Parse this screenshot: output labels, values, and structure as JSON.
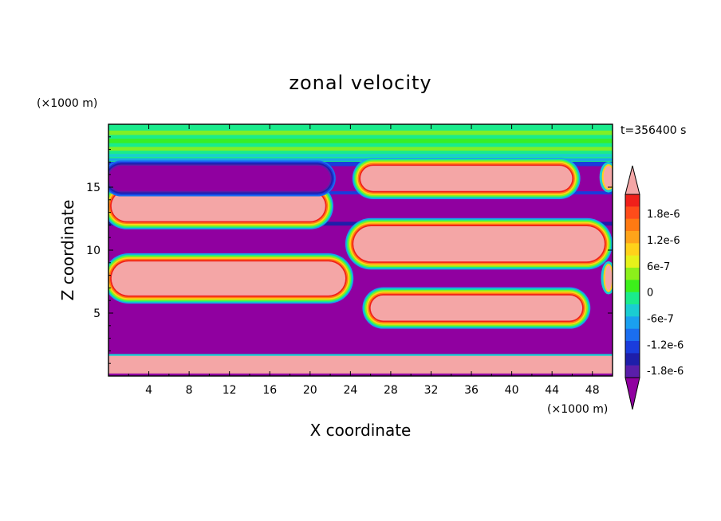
{
  "chart_data": {
    "type": "heatmap",
    "title": "zonal velocity",
    "time_label": "t=356400 s",
    "xlabel": "X coordinate",
    "ylabel": "Z coordinate",
    "x_unit": "(×1000 m)",
    "y_unit": "(×1000 m)",
    "xlim": [
      0,
      50
    ],
    "ylim": [
      0,
      20
    ],
    "x_ticks": [
      "4",
      "8",
      "12",
      "16",
      "20",
      "24",
      "28",
      "32",
      "36",
      "40",
      "44",
      "48"
    ],
    "x_tick_values": [
      4,
      8,
      12,
      16,
      20,
      24,
      28,
      32,
      36,
      40,
      44,
      48
    ],
    "y_ticks": [
      "5",
      "10",
      "15"
    ],
    "y_tick_values": [
      5,
      10,
      15
    ],
    "colorbar": {
      "labels": [
        "1.8e-6",
        "1.2e-6",
        "6e-7",
        "0",
        "-6e-7",
        "-1.2e-6",
        "-1.8e-6"
      ],
      "label_values": [
        1.8e-06,
        1.2e-06,
        6e-07,
        0,
        -6e-07,
        -1.2e-06,
        -1.8e-06
      ],
      "levels_top_to_bottom": [
        2.1e-06,
        1.8e-06,
        1.5e-06,
        1.2e-06,
        9e-07,
        6e-07,
        3e-07,
        0,
        -3e-07,
        -6e-07,
        -9e-07,
        -1.2e-06,
        -1.5e-06,
        -1.8e-06,
        -2.1e-06
      ],
      "colors_top_to_bottom": [
        "#f0201a",
        "#ff4c1a",
        "#ff7a12",
        "#ffa41a",
        "#ffd21a",
        "#e6f21a",
        "#8cf01a",
        "#3cf01a",
        "#1aeb8c",
        "#1acdd2",
        "#1aa0f0",
        "#1a6ef0",
        "#1a3cdc",
        "#1e1eaa",
        "#5a1eaa"
      ],
      "over_color": "#f4a6a6",
      "under_color": "#9000a0"
    },
    "background_color": "#9000a0",
    "positive_color": "#f4a6a6",
    "regions": [
      {
        "sign": "positive",
        "x_range": [
          0,
          50
        ],
        "z_range": [
          0.2,
          1.6
        ]
      },
      {
        "sign": "positive",
        "x_range": [
          0.3,
          23.5
        ],
        "z_range": [
          6.4,
          9.1
        ]
      },
      {
        "sign": "positive",
        "x_range": [
          0.3,
          21.5
        ],
        "z_range": [
          12.3,
          14.7
        ]
      },
      {
        "sign": "positive",
        "x_range": [
          24.3,
          49.2
        ],
        "z_range": [
          9.1,
          11.9
        ]
      },
      {
        "sign": "positive",
        "x_range": [
          26.0,
          47.0
        ],
        "z_range": [
          4.4,
          6.4
        ]
      },
      {
        "sign": "positive",
        "x_range": [
          25.0,
          46.0
        ],
        "z_range": [
          14.7,
          16.7
        ]
      },
      {
        "sign": "negative",
        "x_range": [
          0,
          22
        ],
        "z_range": [
          14.7,
          16.7
        ]
      },
      {
        "sign": "near-zero",
        "x_range": [
          0,
          50
        ],
        "z_range": [
          16.9,
          20
        ]
      }
    ]
  }
}
